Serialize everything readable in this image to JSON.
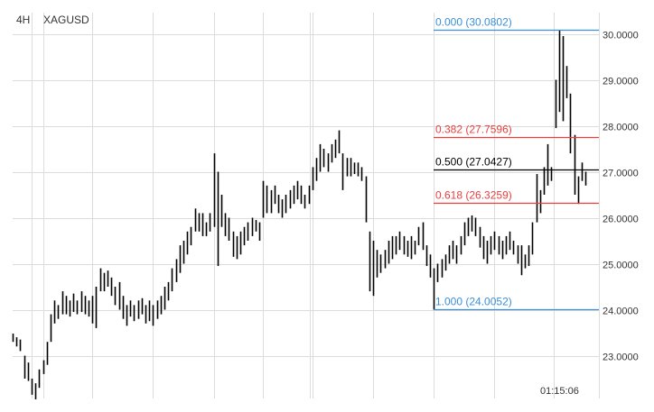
{
  "header": {
    "timeframe": "4H",
    "symbol": "XAGUSD"
  },
  "time_label": "01:15:06",
  "colors": {
    "bar": "#000000",
    "grid": "#dcdcdc",
    "fib_blue": "#3a8fd8",
    "fib_red": "#e8403f",
    "fib_black": "#000000"
  },
  "chart_data": {
    "type": "ohlc-bar",
    "title": "XAGUSD 4H",
    "ylim": [
      22.2,
      30.5
    ],
    "y_ticks": [
      "23.0000",
      "24.0000",
      "25.0000",
      "26.0000",
      "27.0000",
      "28.0000",
      "29.0000",
      "30.0000"
    ],
    "y_tick_values": [
      23,
      24,
      25,
      26,
      27,
      28,
      29,
      30
    ],
    "grid": true,
    "fib_levels": [
      {
        "label": "0.000 (30.0802)",
        "price": 30.0802,
        "color": "blue"
      },
      {
        "label": "0.382 (27.7596)",
        "price": 27.7596,
        "color": "red"
      },
      {
        "label": "0.500 (27.0427)",
        "price": 27.0427,
        "color": "black"
      },
      {
        "label": "0.618 (26.3259)",
        "price": 26.3259,
        "color": "red"
      },
      {
        "label": "1.000 (24.0052)",
        "price": 24.0052,
        "color": "blue"
      }
    ],
    "bars_high_low": [
      [
        23.48,
        23.3
      ],
      [
        23.4,
        23.2
      ],
      [
        23.35,
        23.1
      ],
      [
        23.0,
        22.5
      ],
      [
        22.85,
        22.45
      ],
      [
        22.5,
        22.15
      ],
      [
        22.4,
        22.05
      ],
      [
        22.7,
        22.3
      ],
      [
        22.9,
        22.6
      ],
      [
        23.3,
        22.8
      ],
      [
        23.9,
        23.3
      ],
      [
        24.2,
        23.7
      ],
      [
        24.1,
        23.8
      ],
      [
        24.4,
        23.9
      ],
      [
        24.3,
        23.9
      ],
      [
        24.2,
        23.85
      ],
      [
        24.35,
        23.95
      ],
      [
        24.2,
        23.9
      ],
      [
        24.4,
        23.95
      ],
      [
        24.3,
        23.9
      ],
      [
        24.2,
        23.85
      ],
      [
        24.3,
        23.7
      ],
      [
        24.5,
        23.6
      ],
      [
        24.9,
        24.4
      ],
      [
        24.8,
        24.4
      ],
      [
        24.85,
        24.5
      ],
      [
        24.7,
        24.3
      ],
      [
        24.5,
        24.1
      ],
      [
        24.6,
        24.0
      ],
      [
        24.3,
        23.8
      ],
      [
        24.1,
        23.65
      ],
      [
        24.2,
        23.85
      ],
      [
        24.1,
        23.75
      ],
      [
        24.2,
        23.8
      ],
      [
        24.25,
        23.9
      ],
      [
        24.1,
        23.7
      ],
      [
        24.2,
        23.75
      ],
      [
        24.1,
        23.65
      ],
      [
        24.2,
        23.8
      ],
      [
        24.3,
        23.9
      ],
      [
        24.5,
        24.0
      ],
      [
        24.6,
        24.2
      ],
      [
        24.9,
        24.4
      ],
      [
        25.1,
        24.6
      ],
      [
        25.4,
        24.8
      ],
      [
        25.5,
        25.0
      ],
      [
        25.7,
        25.2
      ],
      [
        25.8,
        25.4
      ],
      [
        26.2,
        25.7
      ],
      [
        26.1,
        25.7
      ],
      [
        26.1,
        25.6
      ],
      [
        25.9,
        25.6
      ],
      [
        26.1,
        25.7
      ],
      [
        27.4,
        25.8
      ],
      [
        27.0,
        24.95
      ],
      [
        26.5,
        25.8
      ],
      [
        26.1,
        25.6
      ],
      [
        26.0,
        25.5
      ],
      [
        25.7,
        25.15
      ],
      [
        25.6,
        25.1
      ],
      [
        25.7,
        25.2
      ],
      [
        25.8,
        25.4
      ],
      [
        25.9,
        25.5
      ],
      [
        26.0,
        25.6
      ],
      [
        25.95,
        25.7
      ],
      [
        25.9,
        25.5
      ],
      [
        26.8,
        26.0
      ],
      [
        26.7,
        26.1
      ],
      [
        26.6,
        26.1
      ],
      [
        26.7,
        26.3
      ],
      [
        26.5,
        26.1
      ],
      [
        26.4,
        26.0
      ],
      [
        26.5,
        26.1
      ],
      [
        26.6,
        26.2
      ],
      [
        26.7,
        26.3
      ],
      [
        26.8,
        26.4
      ],
      [
        26.7,
        26.3
      ],
      [
        26.5,
        26.2
      ],
      [
        26.7,
        26.3
      ],
      [
        27.1,
        26.6
      ],
      [
        27.3,
        26.8
      ],
      [
        27.6,
        27.0
      ],
      [
        27.5,
        27.1
      ],
      [
        27.4,
        27.0
      ],
      [
        27.6,
        27.2
      ],
      [
        27.7,
        27.3
      ],
      [
        27.9,
        27.4
      ],
      [
        27.4,
        26.6
      ],
      [
        27.3,
        26.9
      ],
      [
        27.3,
        26.9
      ],
      [
        27.2,
        26.95
      ],
      [
        27.2,
        26.9
      ],
      [
        27.1,
        26.8
      ],
      [
        26.9,
        25.9
      ],
      [
        25.7,
        24.4
      ],
      [
        25.5,
        24.3
      ],
      [
        25.3,
        24.7
      ],
      [
        25.2,
        24.8
      ],
      [
        25.3,
        24.9
      ],
      [
        25.5,
        25.0
      ],
      [
        25.6,
        25.1
      ],
      [
        25.6,
        25.2
      ],
      [
        25.7,
        25.3
      ],
      [
        25.6,
        25.2
      ],
      [
        25.5,
        25.15
      ],
      [
        25.6,
        25.1
      ],
      [
        25.5,
        25.2
      ],
      [
        25.8,
        25.4
      ],
      [
        25.9,
        25.3
      ],
      [
        25.4,
        24.95
      ],
      [
        25.2,
        24.7
      ],
      [
        24.9,
        24.0
      ],
      [
        25.0,
        24.6
      ],
      [
        25.1,
        24.7
      ],
      [
        25.2,
        24.85
      ],
      [
        25.4,
        25.0
      ],
      [
        25.5,
        25.1
      ],
      [
        25.4,
        25.0
      ],
      [
        25.6,
        25.2
      ],
      [
        25.9,
        25.4
      ],
      [
        26.0,
        25.6
      ],
      [
        26.05,
        25.7
      ],
      [
        26.0,
        25.6
      ],
      [
        25.8,
        25.35
      ],
      [
        25.6,
        25.1
      ],
      [
        25.5,
        25.0
      ],
      [
        25.6,
        25.2
      ],
      [
        25.7,
        25.3
      ],
      [
        25.6,
        25.2
      ],
      [
        25.5,
        25.1
      ],
      [
        25.6,
        25.2
      ],
      [
        25.7,
        25.3
      ],
      [
        25.5,
        25.2
      ],
      [
        25.4,
        25.0
      ],
      [
        25.4,
        24.75
      ],
      [
        25.2,
        24.9
      ],
      [
        25.4,
        24.95
      ],
      [
        25.9,
        25.2
      ],
      [
        26.95,
        25.9
      ],
      [
        26.6,
        26.1
      ],
      [
        27.1,
        26.5
      ],
      [
        27.6,
        26.7
      ],
      [
        27.1,
        26.8
      ],
      [
        29.0,
        27.95
      ],
      [
        30.08,
        28.3
      ],
      [
        29.95,
        28.1
      ],
      [
        29.3,
        28.6
      ],
      [
        28.7,
        27.4
      ],
      [
        27.8,
        26.5
      ],
      [
        26.9,
        26.3
      ],
      [
        27.2,
        26.8
      ],
      [
        27.0,
        26.7
      ]
    ]
  }
}
